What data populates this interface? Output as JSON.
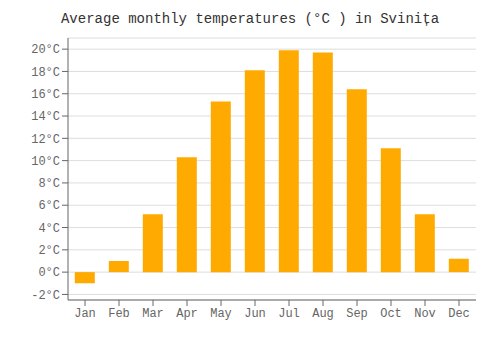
{
  "chart_data": {
    "type": "bar",
    "title": "Average monthly temperatures (°C ) in Svinița",
    "categories": [
      "Jan",
      "Feb",
      "Mar",
      "Apr",
      "May",
      "Jun",
      "Jul",
      "Aug",
      "Sep",
      "Oct",
      "Nov",
      "Dec"
    ],
    "values": [
      -1.0,
      1.0,
      5.2,
      10.3,
      15.3,
      18.1,
      19.9,
      19.7,
      16.4,
      11.1,
      5.2,
      1.2
    ],
    "color": "#FFAA00",
    "ylim": [
      -2.5,
      21
    ],
    "yticks": [
      {
        "value": -2,
        "label": "-2°C"
      },
      {
        "value": 0,
        "label": "0°C"
      },
      {
        "value": 2,
        "label": "2°C"
      },
      {
        "value": 4,
        "label": "4°C"
      },
      {
        "value": 6,
        "label": "6°C"
      },
      {
        "value": 8,
        "label": "8°C"
      },
      {
        "value": 10,
        "label": "10°C"
      },
      {
        "value": 12,
        "label": "12°C"
      },
      {
        "value": 14,
        "label": "14°C"
      },
      {
        "value": 16,
        "label": "16°C"
      },
      {
        "value": 18,
        "label": "18°C"
      },
      {
        "value": 20,
        "label": "20°C"
      }
    ],
    "grid": true
  }
}
